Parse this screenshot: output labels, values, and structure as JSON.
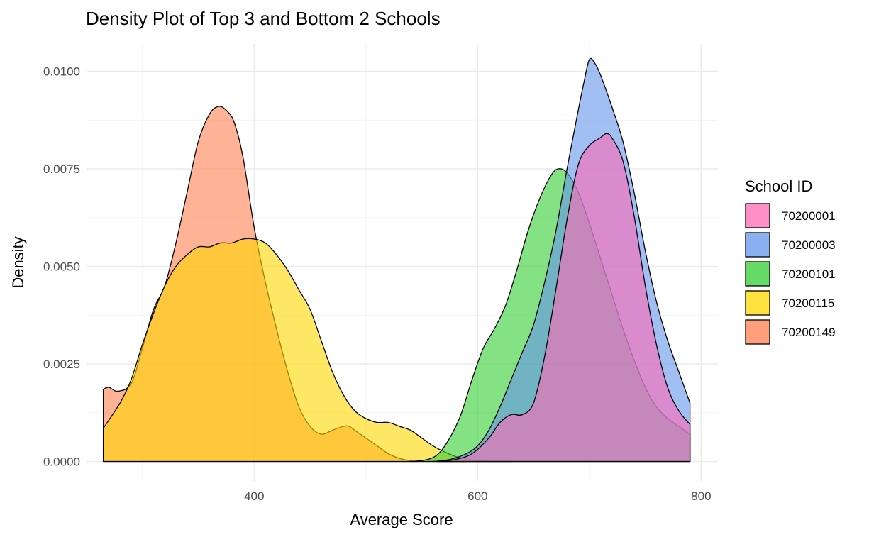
{
  "chart_data": {
    "type": "area",
    "title": "Density Plot of Top 3 and Bottom 2 Schools",
    "xlabel": "Average Score",
    "ylabel": "Density",
    "xlim": [
      250,
      815
    ],
    "ylim": [
      -0.0005,
      0.0107
    ],
    "x_ticks": [
      400,
      600,
      800
    ],
    "x_tick_labels": [
      "400",
      "600",
      "800"
    ],
    "y_ticks": [
      0,
      0.0025,
      0.005,
      0.0075,
      0.01
    ],
    "y_tick_labels": [
      "0.0000",
      "0.0025",
      "0.0050",
      "0.0075",
      "0.0100"
    ],
    "grid": true,
    "fill_alpha": 0.6,
    "legend": {
      "title": "School ID",
      "position": "right"
    },
    "series": [
      {
        "name": "70200149",
        "color": "#FF7F50",
        "x": [
          265,
          270,
          278,
          290,
          300,
          310,
          320,
          330,
          340,
          350,
          360,
          368,
          375,
          382,
          390,
          400,
          410,
          420,
          430,
          440,
          450,
          460,
          470,
          480,
          485,
          490,
          500,
          510,
          520,
          530,
          540,
          545
        ],
        "y": [
          0.00185,
          0.0019,
          0.0018,
          0.002,
          0.0029,
          0.0039,
          0.0045,
          0.0056,
          0.0069,
          0.0082,
          0.0089,
          0.0091,
          0.009,
          0.0087,
          0.0078,
          0.006,
          0.0046,
          0.0034,
          0.0023,
          0.0014,
          0.0009,
          0.0007,
          0.0008,
          0.0009,
          0.0009,
          0.0008,
          0.0006,
          0.0004,
          0.0002,
          8e-05,
          2e-05,
          0
        ]
      },
      {
        "name": "70200115",
        "color": "#FFD700",
        "x": [
          265,
          280,
          290,
          300,
          310,
          320,
          330,
          340,
          350,
          360,
          370,
          380,
          390,
          400,
          410,
          420,
          430,
          440,
          450,
          460,
          470,
          480,
          490,
          500,
          510,
          520,
          530,
          540,
          550,
          560,
          570,
          580,
          590,
          600,
          610,
          620,
          630
        ],
        "y": [
          0.00085,
          0.0015,
          0.0021,
          0.003,
          0.0038,
          0.0045,
          0.005,
          0.0053,
          0.0055,
          0.0055,
          0.0056,
          0.0056,
          0.0057,
          0.0057,
          0.0056,
          0.0053,
          0.0049,
          0.0044,
          0.0039,
          0.0031,
          0.0023,
          0.0017,
          0.0013,
          0.0011,
          0.001,
          0.001,
          0.0009,
          0.0008,
          0.0006,
          0.0004,
          0.00025,
          0.00013,
          6e-05,
          3e-05,
          1e-05,
          5e-06,
          0
        ]
      },
      {
        "name": "70200101",
        "color": "#32CD32",
        "x": [
          540,
          555,
          565,
          575,
          585,
          595,
          605,
          615,
          625,
          635,
          645,
          655,
          665,
          672,
          680,
          690,
          700,
          710,
          720,
          730,
          740,
          750,
          760,
          770,
          780,
          790
        ],
        "y": [
          0,
          5e-05,
          0.0002,
          0.0006,
          0.0012,
          0.0021,
          0.0029,
          0.0034,
          0.004,
          0.0049,
          0.0059,
          0.0067,
          0.0073,
          0.0075,
          0.0074,
          0.0069,
          0.0061,
          0.0052,
          0.0043,
          0.0034,
          0.0026,
          0.0019,
          0.0014,
          0.0011,
          0.0009,
          0.0007
        ]
      },
      {
        "name": "70200003",
        "color": "#6495ED",
        "x": [
          560,
          575,
          590,
          600,
          610,
          620,
          630,
          640,
          650,
          660,
          670,
          680,
          690,
          695,
          700,
          705,
          710,
          720,
          730,
          740,
          750,
          760,
          770,
          780,
          790
        ],
        "y": [
          0,
          5e-05,
          0.0002,
          0.0004,
          0.0008,
          0.0014,
          0.0021,
          0.0028,
          0.0035,
          0.0046,
          0.0059,
          0.0075,
          0.009,
          0.0097,
          0.0103,
          0.0102,
          0.0099,
          0.0091,
          0.0082,
          0.0069,
          0.0054,
          0.0041,
          0.0031,
          0.0023,
          0.0015
        ]
      },
      {
        "name": "70200001",
        "color": "#FF69B4",
        "x": [
          565,
          580,
          595,
          610,
          620,
          630,
          640,
          650,
          660,
          670,
          680,
          690,
          700,
          710,
          715,
          720,
          730,
          740,
          750,
          760,
          770,
          780,
          790
        ],
        "y": [
          0,
          5e-05,
          0.0002,
          0.0006,
          0.001,
          0.0012,
          0.0012,
          0.0015,
          0.0027,
          0.0044,
          0.0062,
          0.0076,
          0.0081,
          0.0083,
          0.0084,
          0.0083,
          0.0077,
          0.0063,
          0.0045,
          0.003,
          0.0019,
          0.0013,
          0.00095
        ]
      }
    ],
    "legend_order": [
      "70200001",
      "70200003",
      "70200101",
      "70200115",
      "70200149"
    ]
  }
}
